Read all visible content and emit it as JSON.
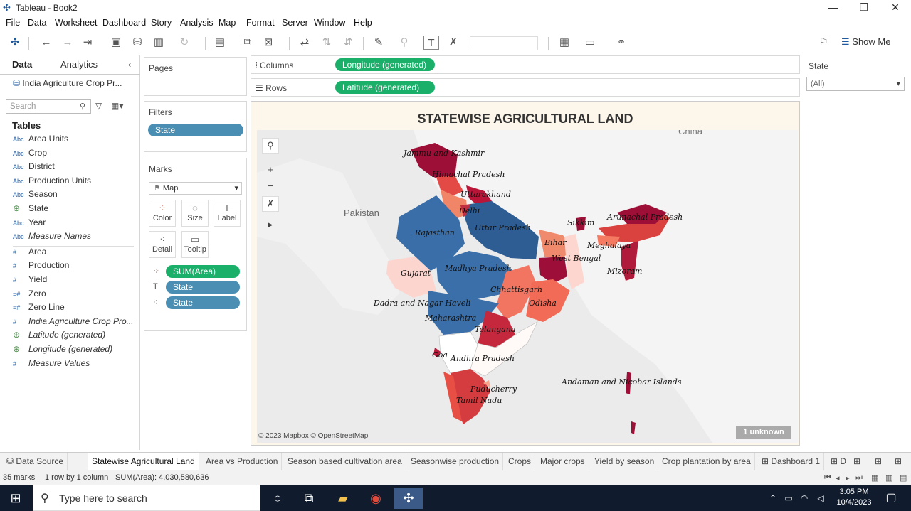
{
  "window": {
    "title": "Tableau - Book2",
    "minimize": "—",
    "restore": "❐",
    "close": "✕"
  },
  "menu": [
    "File",
    "Data",
    "Worksheet",
    "Dashboard",
    "Story",
    "Analysis",
    "Map",
    "Format",
    "Server",
    "Window",
    "Help"
  ],
  "toolbar": {
    "show_me": "Show Me"
  },
  "left_pane": {
    "data_tab": "Data",
    "analytics_tab": "Analytics",
    "data_source": "India Agriculture Crop Pr...",
    "search_placeholder": "Search",
    "tables_heading": "Tables",
    "fields": [
      {
        "type": "Abc",
        "name": "Area Units"
      },
      {
        "type": "Abc",
        "name": "Crop"
      },
      {
        "type": "Abc",
        "name": "District"
      },
      {
        "type": "Abc",
        "name": "Production Units"
      },
      {
        "type": "Abc",
        "name": "Season"
      },
      {
        "type": "globe",
        "name": "State"
      },
      {
        "type": "Abc",
        "name": "Year"
      },
      {
        "type": "Abc",
        "name": "Measure Names"
      },
      {
        "type": "#",
        "name": "Area"
      },
      {
        "type": "#",
        "name": "Production"
      },
      {
        "type": "#",
        "name": "Yield"
      },
      {
        "type": "=#",
        "name": "Zero"
      },
      {
        "type": "=#",
        "name": "Zero Line"
      },
      {
        "type": "#",
        "name": "India Agriculture Crop Pro..."
      },
      {
        "type": "globe",
        "name": "Latitude (generated)"
      },
      {
        "type": "globe",
        "name": "Longitude (generated)"
      },
      {
        "type": "#",
        "name": "Measure Values"
      }
    ]
  },
  "pages_card": {
    "title": "Pages"
  },
  "filters_card": {
    "title": "Filters",
    "pill": "State"
  },
  "marks_card": {
    "title": "Marks",
    "mark_type": "Map",
    "buttons": [
      "Color",
      "Size",
      "Label",
      "Detail",
      "Tooltip"
    ],
    "pills": [
      "SUM(Area)",
      "State",
      "State"
    ]
  },
  "shelves": {
    "columns_label": "Columns",
    "columns_pill": "Longitude (generated)",
    "rows_label": "Rows",
    "rows_pill": "Latitude (generated)"
  },
  "viz": {
    "title": "STATEWISE AGRICULTURAL LAND",
    "credit": "© 2023 Mapbox © OpenStreetMap",
    "unknown": "1 unknown",
    "countries": {
      "pakistan": "Pakistan",
      "china": "China"
    },
    "states": {
      "jk": "Jammu and Kashmir",
      "hp": "Himachal Pradesh",
      "uk": "Uttarakhand",
      "delhi": "Delhi",
      "rj": "Rajasthan",
      "up": "Uttar Pradesh",
      "sikkim": "Sikkim",
      "ar": "Arunachal Pradesh",
      "bihar": "Bihar",
      "meghalaya": "Meghalaya",
      "wb": "West Bengal",
      "mizoram": "Mizoram",
      "gujarat": "Gujarat",
      "mp": "Madhya Pradesh",
      "cg": "Chhattisgarh",
      "dnh": "Dadra and Nagar Haveli",
      "odisha": "Odisha",
      "mh": "Maharashtra",
      "tg": "Telangana",
      "goa": "Goa",
      "ap": "Andhra Pradesh",
      "an": "Andaman and Nicobar Islands",
      "py": "Puducherry",
      "tn": "Tamil Nadu"
    }
  },
  "right_pane": {
    "filter_title": "State",
    "filter_value": "(All)"
  },
  "sheet_tabs": [
    "Data Source",
    "Statewise Agricultural Land",
    "Area vs Production",
    "Season based cultivation area",
    "Seasonwise production",
    "Crops",
    "Major crops",
    "Yield by season",
    "Crop plantation by area",
    "Dashboard 1",
    "D"
  ],
  "status": {
    "marks": "35 marks",
    "layout": "1 row by 1 column",
    "sum": "SUM(Area): 4,030,580,636"
  },
  "taskbar": {
    "search_placeholder": "Type here to search",
    "time": "3:05 PM",
    "date": "10/4/2023"
  }
}
